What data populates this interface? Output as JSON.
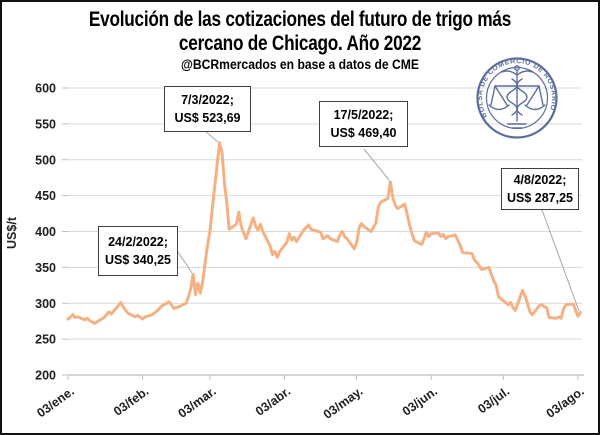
{
  "header": {
    "title_line1": "Evolución de las cotizaciones del futuro de trigo más",
    "title_line2": "cercano de Chicago. Año 2022",
    "subtitle": "@BCRmercados en base a datos de CME"
  },
  "logo": {
    "ring_text": "BOLSA DE COMERCIO DE ROSARIO",
    "color": "#41548b"
  },
  "chart_data": {
    "type": "line",
    "title": "Evolución de las cotizaciones del futuro de trigo más cercano de Chicago. Año 2022",
    "subtitle": "@BCRmercados en base a datos de CME",
    "ylabel": "US$/t",
    "ylim": [
      200,
      600
    ],
    "yticks": [
      600,
      550,
      500,
      450,
      400,
      350,
      300,
      250,
      200
    ],
    "xtick_labels": [
      "03/ene.",
      "03/feb.",
      "03/mar.",
      "03/abr.",
      "03/may.",
      "03/jun.",
      "03/jul.",
      "03/ago."
    ],
    "xtick_day_of_year": [
      3,
      34,
      62,
      93,
      123,
      154,
      184,
      215
    ],
    "x_unit": "day_of_year_2022",
    "grid": true,
    "line_color": "#f4b183",
    "gridline_color": "#d9d9d9",
    "axis_color": "#bfbfbf",
    "leader_color": "#a6a6a6",
    "points": [
      [
        3,
        278
      ],
      [
        4,
        281
      ],
      [
        5,
        284
      ],
      [
        6,
        280
      ],
      [
        7,
        281
      ],
      [
        10,
        277
      ],
      [
        11,
        279
      ],
      [
        12,
        276
      ],
      [
        13,
        274
      ],
      [
        14,
        272
      ],
      [
        18,
        280
      ],
      [
        19,
        284
      ],
      [
        20,
        288
      ],
      [
        21,
        285
      ],
      [
        24,
        297
      ],
      [
        25,
        301
      ],
      [
        26,
        295
      ],
      [
        27,
        290
      ],
      [
        28,
        286
      ],
      [
        31,
        281
      ],
      [
        32,
        283
      ],
      [
        34,
        278
      ],
      [
        35,
        281
      ],
      [
        38,
        284
      ],
      [
        40,
        289
      ],
      [
        42,
        296
      ],
      [
        45,
        302
      ],
      [
        46,
        298
      ],
      [
        47,
        293
      ],
      [
        49,
        295
      ],
      [
        52,
        300
      ],
      [
        53,
        308
      ],
      [
        54,
        320
      ],
      [
        55,
        340.25
      ],
      [
        56,
        312
      ],
      [
        57,
        328
      ],
      [
        58,
        314
      ],
      [
        59,
        330
      ],
      [
        60,
        357
      ],
      [
        61,
        380
      ],
      [
        62,
        400
      ],
      [
        63,
        432
      ],
      [
        66,
        523.69
      ],
      [
        67,
        510
      ],
      [
        68,
        468
      ],
      [
        69,
        440
      ],
      [
        70,
        403
      ],
      [
        73,
        410
      ],
      [
        74,
        427
      ],
      [
        75,
        407
      ],
      [
        76,
        398
      ],
      [
        77,
        390
      ],
      [
        80,
        419
      ],
      [
        81,
        408
      ],
      [
        82,
        402
      ],
      [
        83,
        410
      ],
      [
        84,
        400
      ],
      [
        87,
        380
      ],
      [
        88,
        368
      ],
      [
        89,
        372
      ],
      [
        90,
        364
      ],
      [
        91,
        372
      ],
      [
        94,
        385
      ],
      [
        95,
        397
      ],
      [
        96,
        388
      ],
      [
        97,
        392
      ],
      [
        98,
        386
      ],
      [
        101,
        402
      ],
      [
        103,
        409
      ],
      [
        104,
        403
      ],
      [
        108,
        399
      ],
      [
        109,
        390
      ],
      [
        111,
        394
      ],
      [
        112,
        390
      ],
      [
        115,
        386
      ],
      [
        116,
        395
      ],
      [
        117,
        400
      ],
      [
        118,
        393
      ],
      [
        119,
        390
      ],
      [
        122,
        376
      ],
      [
        123,
        385
      ],
      [
        124,
        405
      ],
      [
        125,
        411
      ],
      [
        126,
        407
      ],
      [
        129,
        400
      ],
      [
        131,
        412
      ],
      [
        132,
        434
      ],
      [
        133,
        441
      ],
      [
        136,
        446
      ],
      [
        137,
        469.4
      ],
      [
        138,
        448
      ],
      [
        139,
        437
      ],
      [
        140,
        432
      ],
      [
        143,
        438
      ],
      [
        144,
        424
      ],
      [
        145,
        409
      ],
      [
        146,
        397
      ],
      [
        147,
        387
      ],
      [
        150,
        382
      ],
      [
        151,
        390
      ],
      [
        152,
        399
      ],
      [
        153,
        393
      ],
      [
        154,
        397
      ],
      [
        157,
        398
      ],
      [
        158,
        393
      ],
      [
        159,
        396
      ],
      [
        160,
        390
      ],
      [
        161,
        393
      ],
      [
        164,
        395
      ],
      [
        165,
        388
      ],
      [
        166,
        381
      ],
      [
        167,
        371
      ],
      [
        171,
        369
      ],
      [
        172,
        360
      ],
      [
        173,
        357
      ],
      [
        174,
        352
      ],
      [
        175,
        347
      ],
      [
        178,
        350
      ],
      [
        179,
        340
      ],
      [
        180,
        331
      ],
      [
        181,
        325
      ],
      [
        182,
        309
      ],
      [
        186,
        298
      ],
      [
        187,
        301
      ],
      [
        188,
        294
      ],
      [
        189,
        290
      ],
      [
        192,
        318
      ],
      [
        193,
        310
      ],
      [
        194,
        300
      ],
      [
        195,
        288
      ],
      [
        196,
        284
      ],
      [
        199,
        297
      ],
      [
        200,
        298
      ],
      [
        201,
        295
      ],
      [
        202,
        294
      ],
      [
        203,
        280
      ],
      [
        206,
        279
      ],
      [
        207,
        281
      ],
      [
        208,
        279
      ],
      [
        209,
        292
      ],
      [
        210,
        298
      ],
      [
        213,
        299
      ],
      [
        214,
        290
      ],
      [
        215,
        282
      ],
      [
        216,
        287.25
      ]
    ],
    "annotations": [
      {
        "date_label": "24/2/2022;",
        "value_label": "US$ 340,25",
        "day_of_year": 55,
        "value": 340.25
      },
      {
        "date_label": "7/3/2022;",
        "value_label": "US$ 523,69",
        "day_of_year": 66,
        "value": 523.69
      },
      {
        "date_label": "17/5/2022;",
        "value_label": "US$ 469,40",
        "day_of_year": 137,
        "value": 469.4
      },
      {
        "date_label": "4/8/2022;",
        "value_label": "US$ 287,25",
        "day_of_year": 216,
        "value": 287.25
      }
    ]
  }
}
